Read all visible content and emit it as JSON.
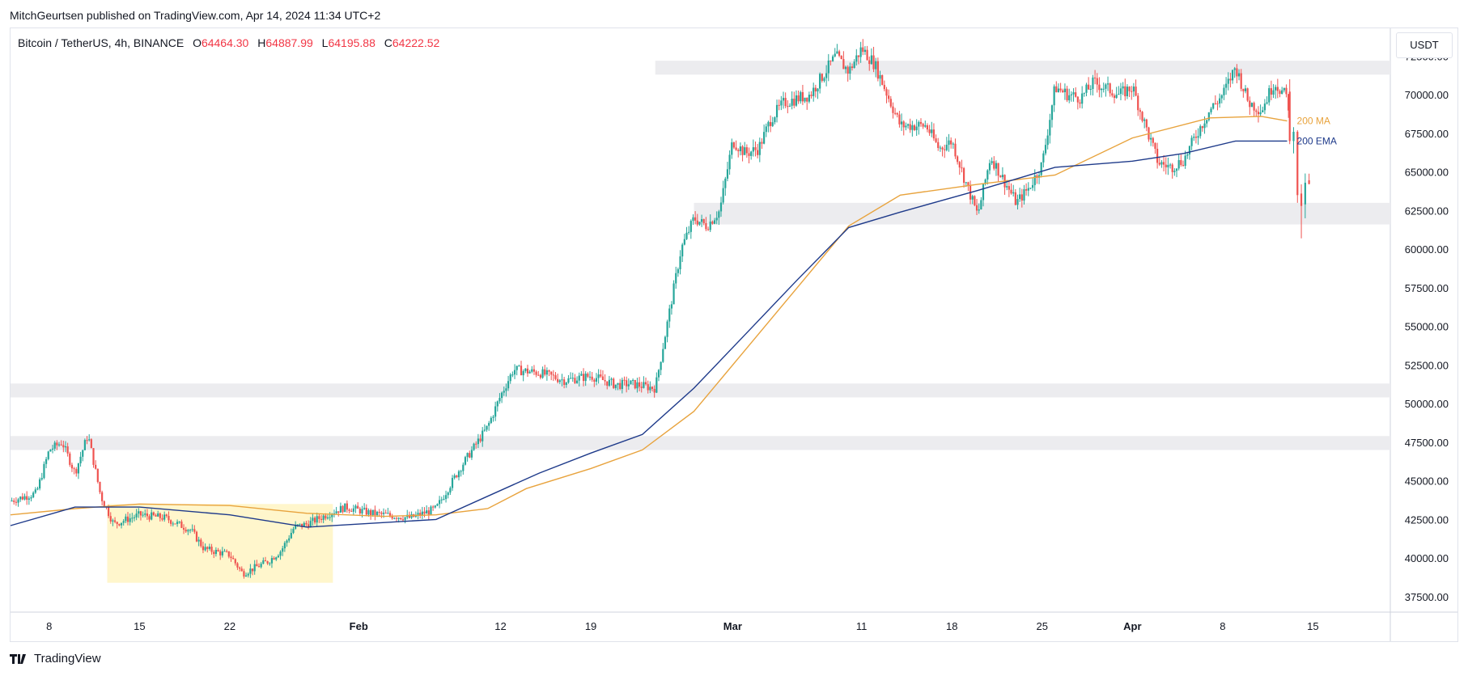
{
  "header": {
    "publisher_line": "MitchGeurtsen published on TradingView.com, Apr 14, 2024 11:34 UTC+2"
  },
  "legend": {
    "symbol": "Bitcoin / TetherUS, 4h, BINANCE",
    "open_label": "O",
    "open_value": "64464.30",
    "high_label": "H",
    "high_value": "64887.99",
    "low_label": "L",
    "low_value": "64195.88",
    "close_label": "C",
    "close_value": "64222.52"
  },
  "price_scale": {
    "unit": "USDT"
  },
  "footer": {
    "brand": "TradingView"
  },
  "colors": {
    "up": "#26a69a",
    "down": "#ef5350",
    "ma": "#e8a33d",
    "ema": "#1e3a8a",
    "zone": "#ececef",
    "highlight": "#fff6cc"
  },
  "chart_data": {
    "type": "candlestick",
    "title": "Bitcoin / TetherUS, 4h, BINANCE",
    "y_ticks": [
      "72500.00",
      "70000.00",
      "67500.00",
      "65000.00",
      "62500.00",
      "60000.00",
      "57500.00",
      "55000.00",
      "52500.00",
      "50000.00",
      "47500.00",
      "45000.00",
      "42500.00",
      "40000.00",
      "37500.00"
    ],
    "x_ticks": [
      {
        "label": "8",
        "day": 8
      },
      {
        "label": "15",
        "day": 15
      },
      {
        "label": "22",
        "day": 22
      },
      {
        "label": "Feb",
        "day": 32,
        "bold": true
      },
      {
        "label": "12",
        "day": 43
      },
      {
        "label": "19",
        "day": 50
      },
      {
        "label": "Mar",
        "day": 61,
        "bold": true
      },
      {
        "label": "11",
        "day": 71
      },
      {
        "label": "18",
        "day": 78
      },
      {
        "label": "25",
        "day": 85
      },
      {
        "label": "Apr",
        "day": 92,
        "bold": true
      },
      {
        "label": "8",
        "day": 99
      },
      {
        "label": "15",
        "day": 106
      }
    ],
    "x_range_days": [
      5,
      112
    ],
    "y_range": [
      36500,
      74300
    ],
    "zones": [
      {
        "from": 71300,
        "to": 72200,
        "start_day": 55
      },
      {
        "from": 61600,
        "to": 63000,
        "start_day": 58
      },
      {
        "from": 50400,
        "to": 51300,
        "start_day": 5
      },
      {
        "from": 47000,
        "to": 47900,
        "start_day": 5
      }
    ],
    "highlight_box": {
      "day_from": 12.5,
      "day_to": 30,
      "low": 38400,
      "high": 43500
    },
    "series": [
      {
        "name": "200 MA",
        "points": [
          [
            5,
            42800
          ],
          [
            10,
            43200
          ],
          [
            15,
            43500
          ],
          [
            22,
            43400
          ],
          [
            28,
            42900
          ],
          [
            34,
            42700
          ],
          [
            38,
            42800
          ],
          [
            42,
            43200
          ],
          [
            45,
            44500
          ],
          [
            50,
            45800
          ],
          [
            54,
            47000
          ],
          [
            58,
            49500
          ],
          [
            62,
            53500
          ],
          [
            66,
            57500
          ],
          [
            70,
            61500
          ],
          [
            74,
            63500
          ],
          [
            80,
            64200
          ],
          [
            86,
            64800
          ],
          [
            92,
            67200
          ],
          [
            98,
            68500
          ],
          [
            102,
            68600
          ],
          [
            104,
            68300
          ]
        ]
      },
      {
        "name": "200 EMA",
        "points": [
          [
            5,
            42100
          ],
          [
            10,
            43300
          ],
          [
            15,
            43300
          ],
          [
            22,
            42800
          ],
          [
            28,
            42000
          ],
          [
            34,
            42300
          ],
          [
            38,
            42500
          ],
          [
            42,
            44000
          ],
          [
            46,
            45500
          ],
          [
            50,
            46800
          ],
          [
            54,
            48000
          ],
          [
            58,
            51000
          ],
          [
            62,
            54500
          ],
          [
            66,
            58000
          ],
          [
            70,
            61400
          ],
          [
            74,
            62400
          ],
          [
            80,
            63800
          ],
          [
            86,
            65300
          ],
          [
            92,
            65700
          ],
          [
            96,
            66200
          ],
          [
            100,
            67000
          ],
          [
            104,
            67000
          ]
        ]
      }
    ],
    "price_path": [
      [
        5,
        43700
      ],
      [
        7,
        44200
      ],
      [
        8,
        47000
      ],
      [
        9,
        47500
      ],
      [
        10,
        45500
      ],
      [
        11,
        48000
      ],
      [
        12,
        44000
      ],
      [
        13,
        42200
      ],
      [
        15,
        42800
      ],
      [
        17,
        42600
      ],
      [
        19,
        41800
      ],
      [
        20,
        40600
      ],
      [
        22,
        40200
      ],
      [
        23,
        39000
      ],
      [
        25,
        39800
      ],
      [
        26,
        40500
      ],
      [
        27,
        42000
      ],
      [
        28,
        42200
      ],
      [
        30,
        43000
      ],
      [
        31,
        43300
      ],
      [
        33,
        42900
      ],
      [
        36,
        42600
      ],
      [
        38,
        43200
      ],
      [
        40,
        46000
      ],
      [
        42,
        48500
      ],
      [
        43,
        50500
      ],
      [
        44,
        52200
      ],
      [
        46,
        52000
      ],
      [
        48,
        51500
      ],
      [
        50,
        51800
      ],
      [
        52,
        51200
      ],
      [
        53,
        51300
      ],
      [
        55,
        51000
      ],
      [
        56,
        55500
      ],
      [
        57,
        60000
      ],
      [
        58,
        62000
      ],
      [
        59,
        61500
      ],
      [
        60,
        62500
      ],
      [
        61,
        67000
      ],
      [
        62,
        66200
      ],
      [
        63,
        66500
      ],
      [
        64,
        68500
      ],
      [
        65,
        69500
      ],
      [
        67,
        70000
      ],
      [
        69,
        72500
      ],
      [
        70,
        71500
      ],
      [
        71,
        73000
      ],
      [
        72,
        72000
      ],
      [
        73,
        70000
      ],
      [
        74,
        68000
      ],
      [
        76,
        68000
      ],
      [
        77,
        66500
      ],
      [
        78,
        67000
      ],
      [
        79,
        64500
      ],
      [
        80,
        62200
      ],
      [
        81,
        66000
      ],
      [
        82,
        64500
      ],
      [
        83,
        63000
      ],
      [
        84,
        64000
      ],
      [
        85,
        65500
      ],
      [
        86,
        70500
      ],
      [
        87,
        70000
      ],
      [
        88,
        69800
      ],
      [
        89,
        70800
      ],
      [
        91,
        70000
      ],
      [
        92,
        70500
      ],
      [
        93,
        68000
      ],
      [
        94,
        65600
      ],
      [
        95,
        65300
      ],
      [
        96,
        65800
      ],
      [
        97,
        67500
      ],
      [
        98,
        69000
      ],
      [
        99,
        70000
      ],
      [
        100,
        71800
      ],
      [
        101,
        69500
      ],
      [
        102,
        69000
      ],
      [
        103,
        70800
      ],
      [
        104,
        69800
      ],
      [
        104.6,
        66500
      ],
      [
        105,
        62500
      ],
      [
        105.5,
        64500
      ]
    ],
    "last_candles": [
      [
        104.2,
        70200,
        67000,
        71000,
        66800
      ],
      [
        104.5,
        67000,
        67600,
        67900,
        66200
      ],
      [
        104.8,
        67600,
        63500,
        67700,
        63000
      ],
      [
        105.1,
        63600,
        62800,
        64200,
        60700
      ],
      [
        105.4,
        62900,
        64300,
        64900,
        62000
      ],
      [
        105.7,
        64460,
        64220,
        64888,
        64196
      ]
    ]
  }
}
